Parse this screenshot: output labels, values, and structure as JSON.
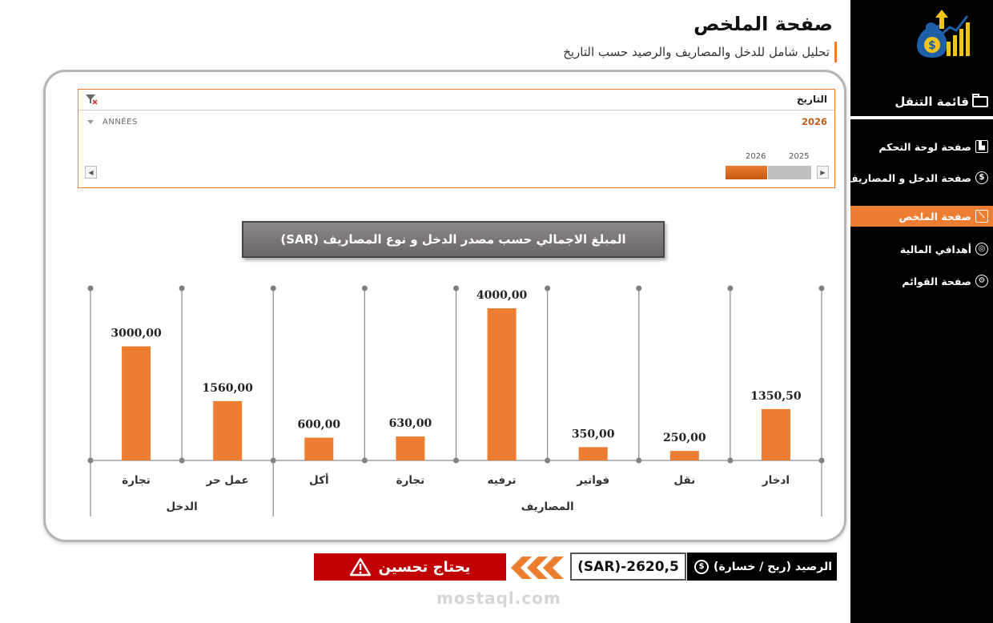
{
  "header": {
    "title": "صفحة الملخص",
    "subtitle": "تحليل شامل للدخل والمصاريف والرصيد حسب التاريخ"
  },
  "sidebar": {
    "nav_title": "قائمة التنقل",
    "items": [
      {
        "label": "صفحة لوحة التحكم",
        "icon": "dashboard-icon",
        "active": false
      },
      {
        "label": "صفحة الدخل و المصاريف",
        "icon": "money-bag-icon",
        "active": false
      },
      {
        "label": "صفحة الملخص",
        "icon": "chart-line-icon",
        "active": true
      },
      {
        "label": "أهدافي المالية",
        "icon": "target-icon",
        "active": false
      },
      {
        "label": "صفحة القوائم",
        "icon": "gear-icon",
        "active": false
      }
    ]
  },
  "slicer": {
    "label": "التاريخ",
    "level": "ANNÉES",
    "selected": "2026",
    "years": [
      "2025",
      "2026"
    ]
  },
  "chart_title": "المبلغ الاجمالي حسب مصدر الدخل و نوع المصاريف (SAR)",
  "chart_data": {
    "type": "bar",
    "title": "المبلغ الاجمالي حسب مصدر الدخل و نوع المصاريف (SAR)",
    "categories": [
      "تجارة",
      "عمل حر",
      "أكل",
      "تجارة",
      "ترفيه",
      "فواتير",
      "نقل",
      "ادخار"
    ],
    "groups": [
      {
        "name": "الدخل",
        "categories": [
          "تجارة",
          "عمل حر"
        ]
      },
      {
        "name": "المصاريف",
        "categories": [
          "أكل",
          "تجارة",
          "ترفيه",
          "فواتير",
          "نقل",
          "ادخار"
        ]
      }
    ],
    "values": [
      3000.0,
      1560.0,
      600.0,
      630.0,
      4000.0,
      350.0,
      250.0,
      1350.5
    ],
    "value_labels": [
      "3000,00",
      "1560,00",
      "600,00",
      "630,00",
      "4000,00",
      "350,00",
      "250,00",
      "1350,50"
    ],
    "ylim": [
      0,
      4600
    ],
    "bar_color": "#ED7D31",
    "grid": false,
    "xlabel": "",
    "ylabel": ""
  },
  "balance": {
    "label": "الرصيد (ربح / خسارة)",
    "value": "(SAR)-2620,5",
    "status": "يحتاج تحسين"
  },
  "watermark": {
    "text": "mostaql.com"
  },
  "colors": {
    "accent": "#ED7D31",
    "sidebar_bg": "#000000",
    "status_bg": "#C00000"
  }
}
